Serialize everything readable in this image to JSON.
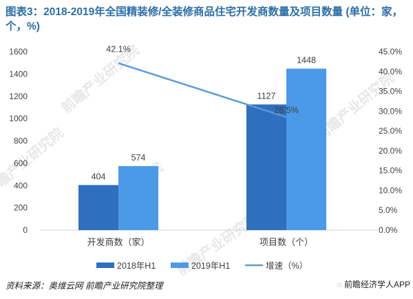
{
  "title": "图表3：2018-2019年全国精装修/全装修商品住宅开发商数量及项目数量 (单位：家，个，%)",
  "source": "资料来源：奥维云网 前瞻产业研究院整理",
  "brand": "前瞻经济学人APP",
  "watermark": "前瞻产业研究院",
  "colors": {
    "series_2018": "#2f6fc0",
    "series_2019": "#4a9ae8",
    "growth_line": "#5b9bd5",
    "axis": "#d0d0d0",
    "title": "#2b6ea8"
  },
  "chart_data": {
    "type": "bar",
    "categories": [
      "开发商数（家）",
      "项目数（个）"
    ],
    "series": [
      {
        "name": "2018年H1",
        "type": "bar",
        "axis": "left",
        "values": [
          404,
          1127
        ],
        "labels": [
          "404",
          "1127"
        ]
      },
      {
        "name": "2019年H1",
        "type": "bar",
        "axis": "left",
        "values": [
          574,
          1448
        ],
        "labels": [
          "574",
          "1448"
        ]
      },
      {
        "name": "增速（%）",
        "type": "line",
        "axis": "right",
        "values": [
          42.1,
          28.5
        ],
        "labels": [
          "42.1%",
          "28.5%"
        ]
      }
    ],
    "y_left": {
      "ylim": [
        0,
        1600
      ],
      "ticks": [
        0,
        200,
        400,
        600,
        800,
        1000,
        1200,
        1400,
        1600
      ]
    },
    "y_right": {
      "ylim": [
        0,
        45
      ],
      "ticks": [
        "0.0%",
        "5.0%",
        "10.0%",
        "15.0%",
        "20.0%",
        "25.0%",
        "30.0%",
        "35.0%",
        "40.0%",
        "45.0%"
      ]
    },
    "legend_position": "bottom",
    "grid": false
  }
}
